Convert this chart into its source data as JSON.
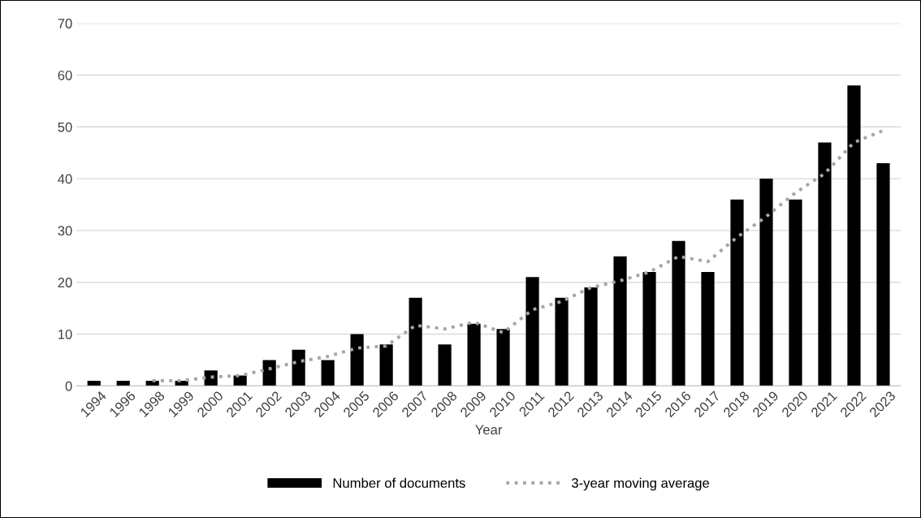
{
  "chart_data": {
    "type": "bar",
    "xlabel": "Year",
    "categories": [
      "1994",
      "1996",
      "1998",
      "1999",
      "2000",
      "2001",
      "2002",
      "2003",
      "2004",
      "2005",
      "2006",
      "2007",
      "2008",
      "2009",
      "2010",
      "2011",
      "2012",
      "2013",
      "2014",
      "2015",
      "2016",
      "2017",
      "2018",
      "2019",
      "2020",
      "2021",
      "2022",
      "2023"
    ],
    "series": [
      {
        "name": "Number of documents",
        "color": "#000000",
        "values": [
          1,
          1,
          1,
          1,
          3,
          2,
          5,
          7,
          5,
          10,
          8,
          17,
          8,
          12,
          11,
          21,
          17,
          19,
          25,
          22,
          28,
          22,
          36,
          40,
          36,
          47,
          58,
          43
        ]
      },
      {
        "name": "3-year moving average",
        "type": "line",
        "color": "#a5a5a5",
        "line_style": "dotted",
        "values": [
          null,
          null,
          1,
          1,
          1.7,
          2,
          3.3,
          4.7,
          5.7,
          7.3,
          7.7,
          11.7,
          11,
          12.3,
          10.3,
          14.7,
          16.3,
          19,
          20.3,
          22,
          25,
          24,
          28.7,
          32.7,
          37.3,
          41,
          47,
          49.3
        ]
      }
    ],
    "ylim": [
      0,
      70
    ],
    "yticks": [
      0,
      10,
      20,
      30,
      40,
      50,
      60,
      70
    ],
    "grid": "y",
    "legend": "bottom"
  }
}
